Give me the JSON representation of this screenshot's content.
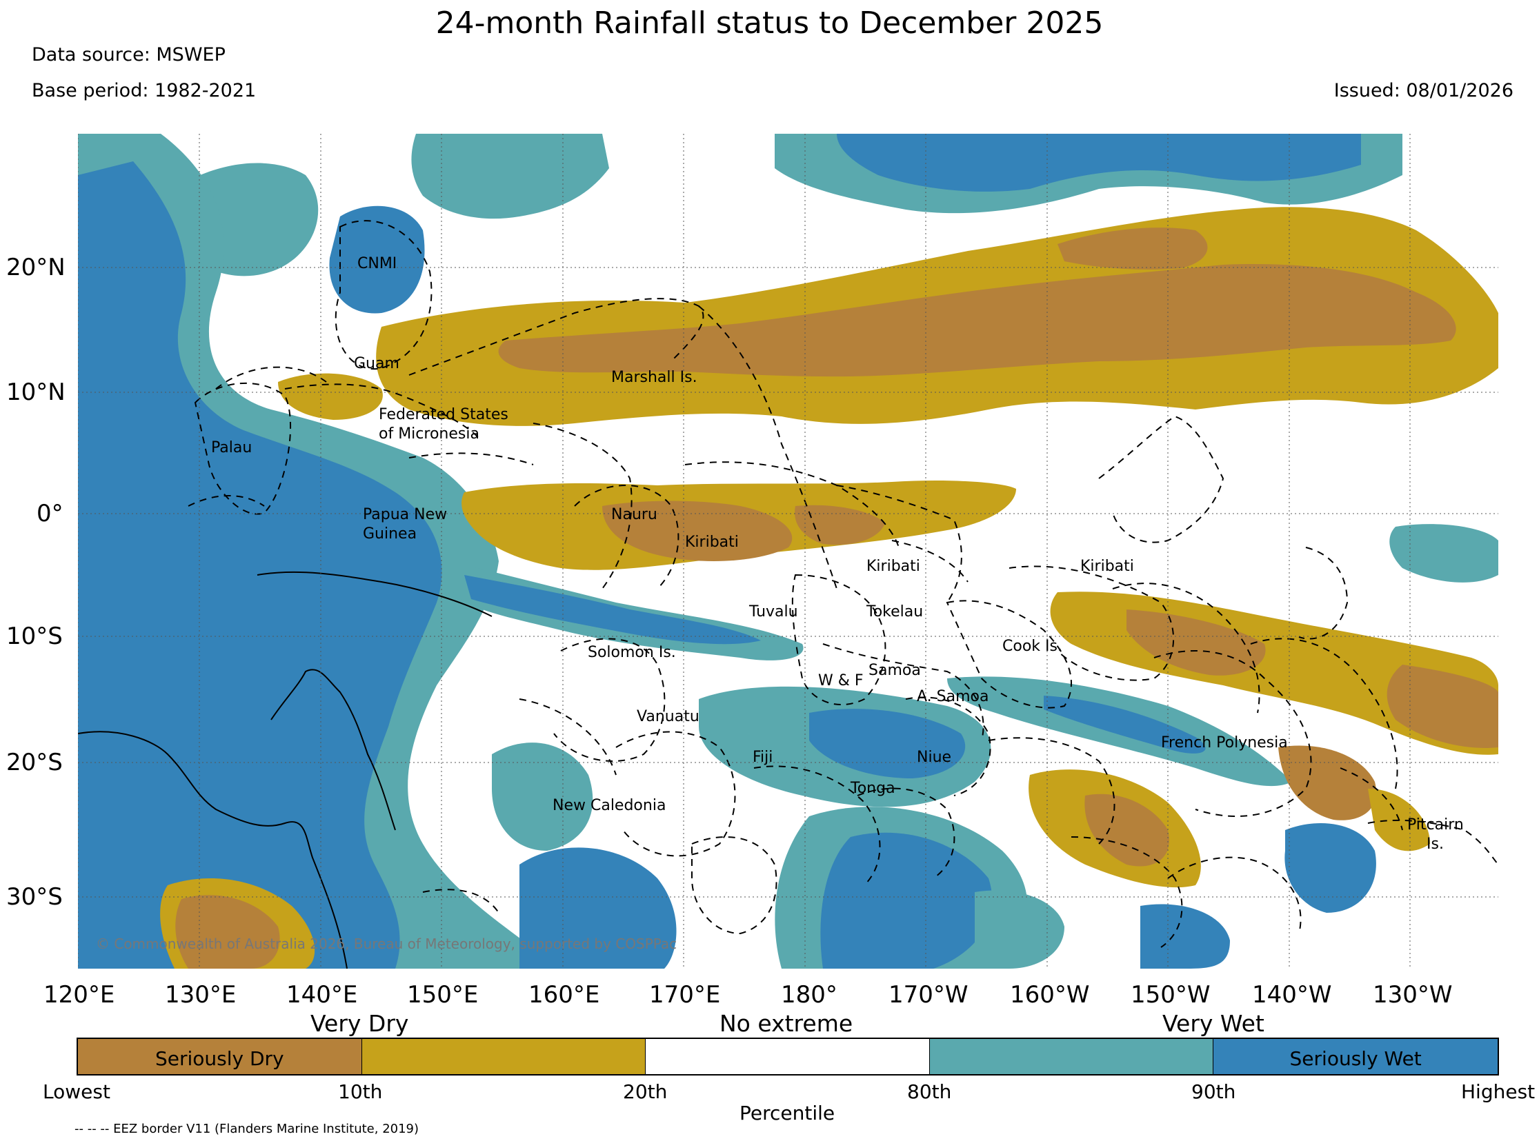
{
  "title": "24-month Rainfall status to December 2025",
  "data_source": "Data source: MSWEP",
  "base_period": "Base period: 1982-2021",
  "issued": "Issued: 08/01/2026",
  "copyright": "© Commonwealth of Australia 2026, Bureau of Meteorology, supported by COSPPac",
  "footnote": "-- -- -- EEZ border V11 (Flanders Marine Institute, 2019)",
  "axes": {
    "lon_ticks": [
      "120°E",
      "130°E",
      "140°E",
      "150°E",
      "160°E",
      "170°E",
      "180°",
      "170°W",
      "160°W",
      "150°W",
      "140°W",
      "130°W"
    ],
    "lat_ticks": [
      "20°N",
      "10°N",
      "0°",
      "10°S",
      "20°S",
      "30°S"
    ]
  },
  "regions": [
    {
      "label": "CNMI"
    },
    {
      "label": "Guam"
    },
    {
      "label": "Marshall Is."
    },
    {
      "label": "Federated States\nof Micronesia"
    },
    {
      "label": "Palau"
    },
    {
      "label": "Nauru"
    },
    {
      "label": "Kiribati"
    },
    {
      "label": "Papua New\nGuinea"
    },
    {
      "label": "Kiribati"
    },
    {
      "label": "Kiribati"
    },
    {
      "label": "Tuvalu"
    },
    {
      "label": "Tokelau"
    },
    {
      "label": "Solomon Is."
    },
    {
      "label": "Cook Is."
    },
    {
      "label": "Samoa"
    },
    {
      "label": "W & F"
    },
    {
      "label": "A. Samoa"
    },
    {
      "label": "Vanuatu"
    },
    {
      "label": "French Polynesia"
    },
    {
      "label": "Fiji"
    },
    {
      "label": "Niue"
    },
    {
      "label": "Tonga"
    },
    {
      "label": "New Caledonia"
    },
    {
      "label": "Pitcairn\nIs."
    }
  ],
  "legend": {
    "top_labels": [
      "Very Dry",
      "No extreme",
      "Very Wet"
    ],
    "segments": [
      {
        "label": "Seriously Dry",
        "color": "#b5813a"
      },
      {
        "label": "",
        "color": "#c6a21b"
      },
      {
        "label": "",
        "color": "#ffffff"
      },
      {
        "label": "",
        "color": "#5aa9ae"
      },
      {
        "label": "Seriously Wet",
        "color": "#3483b9"
      }
    ],
    "bottom_labels": [
      "Lowest",
      "10th",
      "20th",
      "80th",
      "90th",
      "Highest"
    ],
    "axis_title": "Percentile"
  }
}
